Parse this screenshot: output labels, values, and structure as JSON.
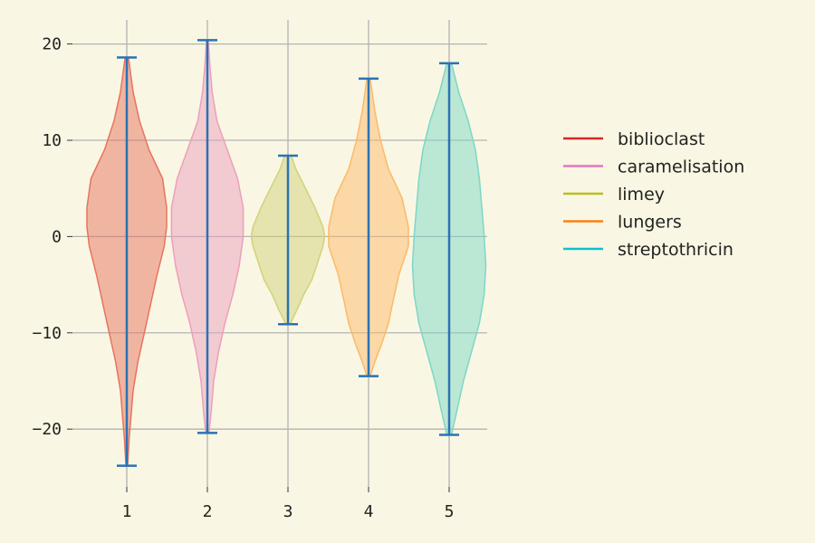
{
  "chart_data": {
    "type": "violin",
    "title": "",
    "xlabel": "",
    "ylabel": "",
    "categories": [
      "1",
      "2",
      "3",
      "4",
      "5"
    ],
    "ylim": [
      -26,
      22.5
    ],
    "yticks": [
      20,
      10,
      0,
      -10,
      -20
    ],
    "ytick_labels": [
      "20",
      "10",
      "0",
      "−10",
      "−20"
    ],
    "grid": true,
    "legend_position": "right",
    "series": [
      {
        "name": "biblioclast",
        "color": "#e8735f",
        "legend_color": "#d62728",
        "min": -23.8,
        "max": 18.6,
        "density": [
          [
            18.6,
            0.02
          ],
          [
            15,
            0.08
          ],
          [
            12,
            0.16
          ],
          [
            9,
            0.28
          ],
          [
            6,
            0.45
          ],
          [
            3,
            0.5
          ],
          [
            1,
            0.5
          ],
          [
            -1,
            0.47
          ],
          [
            -4,
            0.38
          ],
          [
            -7,
            0.3
          ],
          [
            -10,
            0.22
          ],
          [
            -13,
            0.14
          ],
          [
            -16,
            0.08
          ],
          [
            -19,
            0.05
          ],
          [
            -21,
            0.03
          ],
          [
            -23.8,
            0.01
          ]
        ]
      },
      {
        "name": "caramelisation",
        "color": "#ec9fbd",
        "legend_color": "#e377c2",
        "min": -20.4,
        "max": 20.4,
        "density": [
          [
            20.4,
            0.01
          ],
          [
            18,
            0.03
          ],
          [
            15,
            0.06
          ],
          [
            12,
            0.12
          ],
          [
            9,
            0.25
          ],
          [
            6,
            0.38
          ],
          [
            3,
            0.45
          ],
          [
            0,
            0.45
          ],
          [
            -3,
            0.4
          ],
          [
            -6,
            0.32
          ],
          [
            -9,
            0.22
          ],
          [
            -12,
            0.14
          ],
          [
            -15,
            0.08
          ],
          [
            -18,
            0.05
          ],
          [
            -20.4,
            0.02
          ]
        ]
      },
      {
        "name": "limey",
        "color": "#d2d27a",
        "legend_color": "#bcbd22",
        "min": -9.1,
        "max": 8.4,
        "density": [
          [
            8.4,
            0.04
          ],
          [
            7,
            0.1
          ],
          [
            5,
            0.22
          ],
          [
            3,
            0.34
          ],
          [
            1,
            0.44
          ],
          [
            0,
            0.46
          ],
          [
            -1,
            0.44
          ],
          [
            -3,
            0.36
          ],
          [
            -4.5,
            0.3
          ],
          [
            -6,
            0.2
          ],
          [
            -7.5,
            0.12
          ],
          [
            -8.5,
            0.06
          ],
          [
            -9.1,
            0.03
          ]
        ]
      },
      {
        "name": "lungers",
        "color": "#fdb96a",
        "legend_color": "#ff7f0e",
        "min": -14.5,
        "max": 16.4,
        "density": [
          [
            16.4,
            0.02
          ],
          [
            13,
            0.08
          ],
          [
            10,
            0.15
          ],
          [
            7,
            0.25
          ],
          [
            4,
            0.42
          ],
          [
            1,
            0.5
          ],
          [
            -1,
            0.5
          ],
          [
            -4,
            0.38
          ],
          [
            -7,
            0.3
          ],
          [
            -9,
            0.25
          ],
          [
            -11,
            0.17
          ],
          [
            -13,
            0.08
          ],
          [
            -14.5,
            0.02
          ]
        ]
      },
      {
        "name": "streptothricin",
        "color": "#7dd7c7",
        "legend_color": "#17becf",
        "min": -20.6,
        "max": 18.0,
        "density": [
          [
            18,
            0.03
          ],
          [
            15,
            0.12
          ],
          [
            12,
            0.24
          ],
          [
            9,
            0.33
          ],
          [
            6,
            0.38
          ],
          [
            3,
            0.41
          ],
          [
            0,
            0.44
          ],
          [
            -3,
            0.46
          ],
          [
            -6,
            0.44
          ],
          [
            -9,
            0.38
          ],
          [
            -12,
            0.28
          ],
          [
            -15,
            0.18
          ],
          [
            -18,
            0.1
          ],
          [
            -20.6,
            0.03
          ]
        ]
      }
    ]
  },
  "style": {
    "stat_line_color": "#2a72b4",
    "grid_color": "#b3b3b3",
    "background": "#f9f7e3"
  }
}
